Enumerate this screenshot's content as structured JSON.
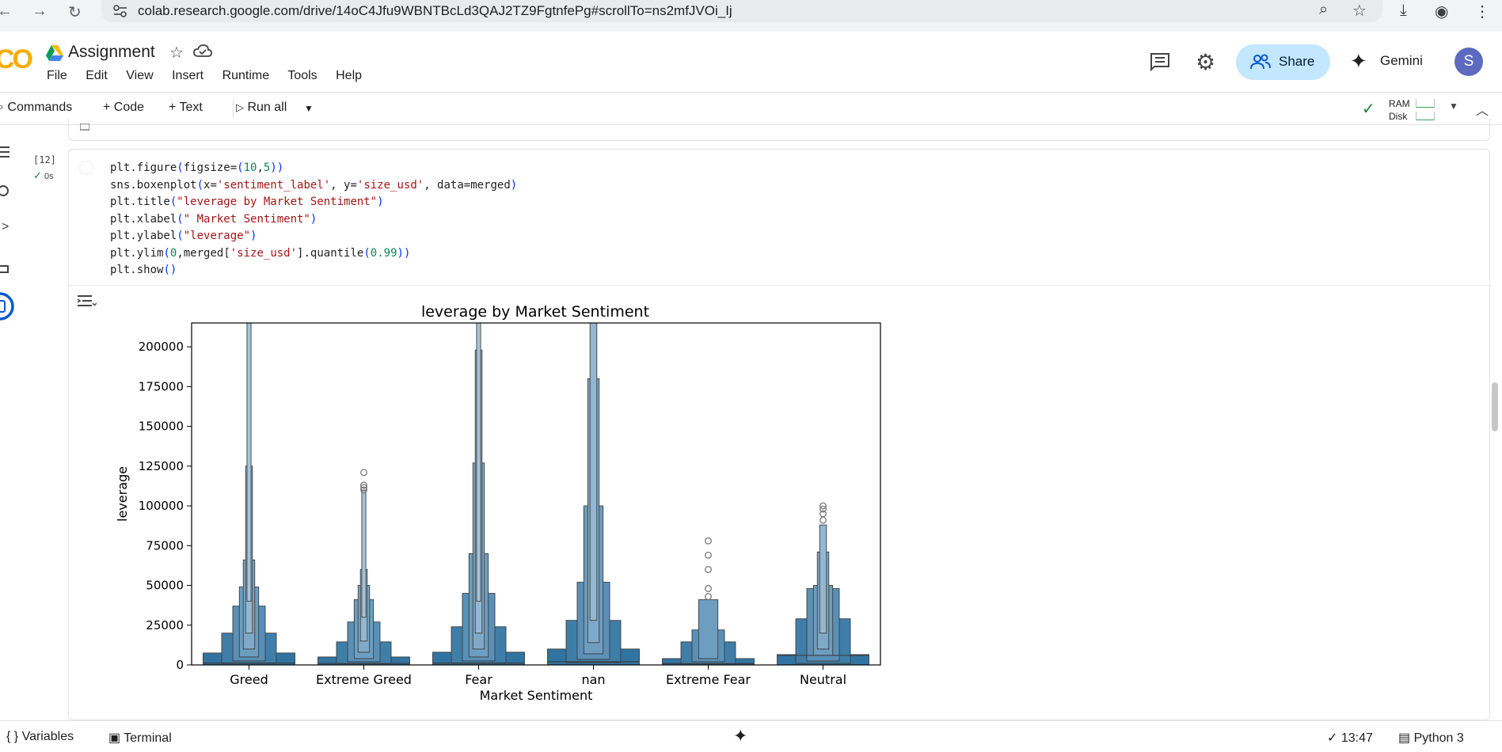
{
  "browser": {
    "url": "colab.research.google.com/drive/14oC4Jfu9WBNTBcLd3QAJ2TZ9FgtnfePg#scrollTo=ns2mfJVOi_Ij"
  },
  "header": {
    "notebook_title": "Assignment",
    "menu": [
      "File",
      "Edit",
      "View",
      "Insert",
      "Runtime",
      "Tools",
      "Help"
    ],
    "share_label": "Share",
    "gemini_label": "Gemini",
    "avatar_letter": "S"
  },
  "toolbar": {
    "commands_label": "Commands",
    "code_label": "+ Code",
    "text_label": "+ Text",
    "run_all_label": "Run all",
    "ram_label": "RAM",
    "disk_label": "Disk"
  },
  "cell": {
    "exec_count": "[12]",
    "exec_time": "0s",
    "code_lines": [
      "plt.figure(figsize=(10,5))",
      "sns.boxenplot(x='sentiment_label', y='size_usd', data=merged)",
      "plt.title(\"leverage by Market Sentiment\")",
      "plt.xlabel(\" Market Sentiment\")",
      "plt.ylabel(\"leverage\")",
      "plt.ylim(0,merged['size_usd'].quantile(0.99))",
      "plt.show()"
    ]
  },
  "chart_data": {
    "type": "boxen",
    "title": "leverage by Market Sentiment",
    "xlabel": "Market Sentiment",
    "ylabel": "leverage",
    "ylim": [
      0,
      215000
    ],
    "yticks": [
      0,
      25000,
      50000,
      75000,
      100000,
      125000,
      150000,
      175000,
      200000
    ],
    "categories": [
      "Greed",
      "Extreme Greed",
      "Fear",
      "nan",
      "Extreme Fear",
      "Neutral"
    ],
    "color": "#3274a1",
    "series": [
      {
        "category": "Greed",
        "boxes": [
          [
            0,
            7500
          ],
          [
            1000,
            20000
          ],
          [
            2500,
            37000
          ],
          [
            5000,
            49000
          ],
          [
            10000,
            66000
          ],
          [
            20000,
            125000
          ],
          [
            40000,
            215000
          ]
        ],
        "median": 1200,
        "outliers": []
      },
      {
        "category": "Extreme Greed",
        "boxes": [
          [
            0,
            5000
          ],
          [
            800,
            14500
          ],
          [
            2000,
            27000
          ],
          [
            4000,
            41000
          ],
          [
            8000,
            50000
          ],
          [
            15000,
            60000
          ],
          [
            30000,
            110000
          ]
        ],
        "median": 900,
        "outliers": [
          110000,
          111500,
          113000,
          121000
        ]
      },
      {
        "category": "Fear",
        "boxes": [
          [
            0,
            8000
          ],
          [
            1000,
            24000
          ],
          [
            2500,
            45000
          ],
          [
            5000,
            70000
          ],
          [
            10000,
            127000
          ],
          [
            20000,
            198000
          ],
          [
            40000,
            215000
          ]
        ],
        "median": 1200,
        "outliers": []
      },
      {
        "category": "nan",
        "boxes": [
          [
            0,
            10000
          ],
          [
            1500,
            28000
          ],
          [
            3500,
            52000
          ],
          [
            7000,
            100000
          ],
          [
            14000,
            180000
          ],
          [
            28000,
            215000
          ]
        ],
        "median": 2000,
        "outliers": []
      },
      {
        "category": "Extreme Fear",
        "boxes": [
          [
            0,
            4000
          ],
          [
            700,
            14500
          ],
          [
            2000,
            22000
          ],
          [
            4000,
            41000
          ]
        ],
        "median": 800,
        "outliers": [
          43000,
          48000,
          60000,
          69000,
          78000
        ]
      },
      {
        "category": "Neutral",
        "boxes": [
          [
            0,
            6500
          ],
          [
            1000,
            29000
          ],
          [
            2500,
            48000
          ],
          [
            6000,
            50000
          ],
          [
            10000,
            71000
          ],
          [
            20000,
            88000
          ]
        ],
        "median": 6000,
        "outliers": [
          91000,
          95000,
          98000,
          100000
        ]
      }
    ]
  },
  "statusbar": {
    "variables_label": "Variables",
    "terminal_label": "Terminal",
    "time": "13:47",
    "runtime_label": "Python 3"
  }
}
